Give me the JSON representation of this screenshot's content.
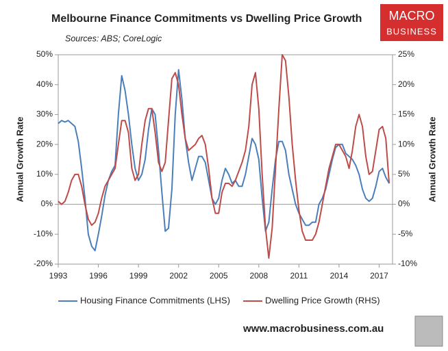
{
  "chart_data": {
    "type": "line",
    "title": "Melbourne Finance Commitments vs Dwelling Price Growth",
    "subtitle": "Sources: ABS; CoreLogic",
    "logo": {
      "line1": "MACRO",
      "line2": "BUSINESS"
    },
    "footer": "www.macrobusiness.com.au",
    "ylabel": "Annual Growth Rate",
    "y2label": "Annual Growth Rate",
    "x": [
      1993,
      1993.25,
      1993.5,
      1993.75,
      1994,
      1994.25,
      1994.5,
      1994.75,
      1995,
      1995.25,
      1995.5,
      1995.75,
      1996,
      1996.25,
      1996.5,
      1996.75,
      1997,
      1997.25,
      1997.5,
      1997.75,
      1998,
      1998.25,
      1998.5,
      1998.75,
      1999,
      1999.25,
      1999.5,
      1999.75,
      2000,
      2000.25,
      2000.5,
      2000.75,
      2001,
      2001.25,
      2001.5,
      2001.75,
      2002,
      2002.25,
      2002.5,
      2002.75,
      2003,
      2003.25,
      2003.5,
      2003.75,
      2004,
      2004.25,
      2004.5,
      2004.75,
      2005,
      2005.25,
      2005.5,
      2005.75,
      2006,
      2006.25,
      2006.5,
      2006.75,
      2007,
      2007.25,
      2007.5,
      2007.75,
      2008,
      2008.25,
      2008.5,
      2008.75,
      2009,
      2009.25,
      2009.5,
      2009.75,
      2010,
      2010.25,
      2010.5,
      2010.75,
      2011,
      2011.25,
      2011.5,
      2011.75,
      2012,
      2012.25,
      2012.5,
      2012.75,
      2013,
      2013.25,
      2013.5,
      2013.75,
      2014,
      2014.25,
      2014.5,
      2014.75,
      2015,
      2015.25,
      2015.5,
      2015.75,
      2016,
      2016.25,
      2016.5,
      2016.75,
      2017,
      2017.25,
      2017.5,
      2017.75
    ],
    "series": [
      {
        "name": "Housing Finance Commitments (LHS)",
        "color": "#4a7ebb",
        "axis": "y",
        "values": [
          27,
          28,
          27.5,
          28,
          27,
          26,
          21,
          12,
          2,
          -10,
          -14,
          -15.5,
          -10,
          -4,
          3,
          8,
          11,
          13,
          30,
          43,
          38,
          30,
          20,
          12,
          8,
          10,
          15,
          25,
          32,
          30,
          18,
          4,
          -9,
          -8,
          5,
          30,
          45,
          35,
          22,
          14,
          8,
          12,
          16,
          16,
          14,
          8,
          2,
          0,
          2,
          8,
          12,
          10,
          7,
          8,
          6,
          6,
          10,
          16,
          22,
          20,
          15,
          2,
          -9,
          -6,
          5,
          15,
          21,
          21,
          18,
          10,
          5,
          0,
          -3,
          -5,
          -7,
          -7,
          -6,
          -6,
          0,
          2,
          5,
          10,
          15,
          19,
          20,
          20,
          17,
          16,
          15,
          13,
          10,
          5,
          2,
          1,
          2,
          6,
          11,
          12,
          9,
          7
        ]
      },
      {
        "name": "Dwelling Price Growth (RHS)",
        "color": "#be4b48",
        "axis": "y2",
        "values": [
          0.5,
          0,
          0.5,
          2,
          4,
          5,
          5,
          3,
          0,
          -2.5,
          -3.5,
          -3,
          -1.5,
          1,
          3,
          4,
          5,
          6,
          10,
          14,
          14,
          12,
          6,
          4,
          5,
          10,
          14,
          16,
          16,
          12,
          7,
          5.5,
          7,
          14,
          21,
          22,
          20,
          15,
          11,
          9,
          9.5,
          10,
          11,
          11.5,
          10,
          6,
          1,
          -1.5,
          -1.5,
          2,
          3.5,
          3.5,
          3,
          4,
          5.5,
          7,
          9,
          13,
          20,
          22,
          16,
          5,
          -4,
          -9,
          -4,
          6,
          16,
          25,
          24,
          18,
          10,
          4,
          -1,
          -4.5,
          -6,
          -6,
          -6,
          -5,
          -3,
          0,
          3,
          6,
          8,
          10,
          10,
          9,
          8,
          6,
          9,
          13,
          15,
          13,
          8,
          5,
          5.5,
          9,
          12.5,
          13,
          11,
          3.5
        ]
      }
    ],
    "xlim": [
      1993,
      2018
    ],
    "xticks": [
      1993,
      1996,
      1999,
      2002,
      2005,
      2008,
      2011,
      2014,
      2017
    ],
    "ylim": [
      -20,
      50
    ],
    "yticks": [
      {
        "value": -20,
        "label": "-20%"
      },
      {
        "value": -10,
        "label": "-10%"
      },
      {
        "value": 0,
        "label": "0%"
      },
      {
        "value": 10,
        "label": "10%"
      },
      {
        "value": 20,
        "label": "20%"
      },
      {
        "value": 30,
        "label": "30%"
      },
      {
        "value": 40,
        "label": "40%"
      },
      {
        "value": 50,
        "label": "50%"
      }
    ],
    "y2lim": [
      -10,
      25
    ],
    "y2ticks": [
      {
        "value": -10,
        "label": "-10%"
      },
      {
        "value": -5,
        "label": "-5%"
      },
      {
        "value": 0,
        "label": "0%"
      },
      {
        "value": 5,
        "label": "5%"
      },
      {
        "value": 10,
        "label": "10%"
      },
      {
        "value": 15,
        "label": "15%"
      },
      {
        "value": 20,
        "label": "20%"
      },
      {
        "value": 25,
        "label": "25%"
      }
    ],
    "legend": "bottom"
  }
}
